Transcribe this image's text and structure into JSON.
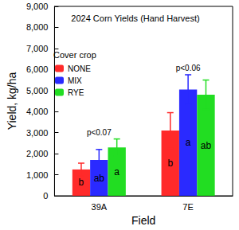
{
  "chart_data": {
    "type": "bar",
    "title": "2024 Corn Yields (Hand Harvest)",
    "x_label": "Field",
    "y_label": "Yield, kg/ha",
    "legend_title": "Cover crop",
    "categories": [
      "39A",
      "7E"
    ],
    "series": [
      {
        "name": "NONE",
        "color": "#ff2a2a",
        "values": [
          1250,
          3100
        ],
        "errors": [
          300,
          850
        ],
        "letters": [
          "b",
          "b"
        ]
      },
      {
        "name": "MIX",
        "color": "#2a2aff",
        "values": [
          1700,
          5050
        ],
        "errors": [
          500,
          700
        ],
        "letters": [
          "ab",
          "a"
        ]
      },
      {
        "name": "RYE",
        "color": "#22dd22",
        "values": [
          2300,
          4800
        ],
        "errors": [
          400,
          700
        ],
        "letters": [
          "a",
          "ab"
        ]
      }
    ],
    "annotations": [
      {
        "category": "39A",
        "text": "p<0.07"
      },
      {
        "category": "7E",
        "text": "p<0.06"
      }
    ],
    "ylim": [
      0,
      9000
    ],
    "yticks": [
      0,
      {
        "value": 1000,
        "label": "1,000"
      },
      {
        "value": 2000,
        "label": "2,000"
      },
      {
        "value": 3000,
        "label": "3,000"
      },
      {
        "value": 4000,
        "label": "4,000"
      },
      {
        "value": 5000,
        "label": "5,000"
      },
      {
        "value": 6000,
        "label": "6,000"
      },
      {
        "value": 7000,
        "label": "7,000"
      },
      {
        "value": 8000,
        "label": "8,000"
      },
      {
        "value": 9000,
        "label": "9,000"
      }
    ],
    "grid": false,
    "legend": "upper left"
  }
}
